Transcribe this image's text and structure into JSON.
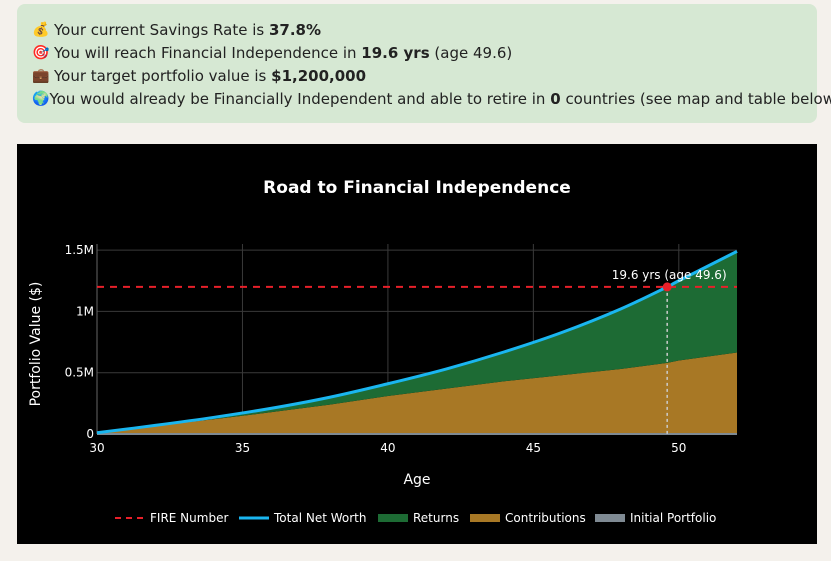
{
  "summary": {
    "savings": {
      "icon": "money-bag-icon",
      "glyph": "💰",
      "prefix": "Your current Savings Rate is ",
      "value": "37.8%"
    },
    "fi_time": {
      "icon": "target-icon",
      "glyph": "🎯",
      "prefix": "You will reach Financial Independence in ",
      "value": "19.6 yrs",
      "suffix": " (age 49.6)"
    },
    "target": {
      "icon": "briefcase-icon",
      "glyph": "💼",
      "prefix": "Your target portfolio value is ",
      "value": "$1,200,000"
    },
    "countries": {
      "icon": "globe-icon",
      "glyph": "🌍",
      "prefix": "You would already be Financially Independent and able to retire in ",
      "value": "0",
      "suffix": " countries (see map and table below)"
    }
  },
  "chart_data": {
    "type": "area",
    "title": "Road to Financial Independence",
    "xlabel": "Age",
    "ylabel": "Portfolio Value ($)",
    "xlim": [
      30,
      52
    ],
    "ylim": [
      0,
      1550000
    ],
    "xticks": [
      30,
      35,
      40,
      45,
      50
    ],
    "yticks": [
      0,
      500000,
      1000000,
      1500000
    ],
    "ytick_labels": [
      "0",
      "0.5M",
      "1M",
      "1.5M"
    ],
    "grid": true,
    "legend_position": "bottom",
    "x": [
      30,
      32,
      34,
      36,
      38,
      40,
      42,
      44,
      46,
      48,
      49.6,
      50,
      52
    ],
    "series": [
      {
        "name": "FIRE Number",
        "style": "dashed",
        "color": "#e8202a",
        "values": [
          1200000,
          1200000,
          1200000,
          1200000,
          1200000,
          1200000,
          1200000,
          1200000,
          1200000,
          1200000,
          1200000,
          1200000,
          1200000
        ]
      },
      {
        "name": "Total Net Worth",
        "style": "line",
        "color": "#1ab6f0",
        "values": [
          10000,
          70000,
          135000,
          210000,
          300000,
          410000,
          530000,
          670000,
          830000,
          1020000,
          1200000,
          1250000,
          1490000
        ]
      },
      {
        "name": "Returns",
        "style": "area",
        "color": "#1d6b34",
        "values": [
          0,
          4000,
          15000,
          32000,
          60000,
          100000,
          160000,
          240000,
          350000,
          490000,
          620000,
          650000,
          825000
        ]
      },
      {
        "name": "Contributions",
        "style": "area",
        "color": "#a87825",
        "values": [
          10000,
          66000,
          120000,
          178000,
          240000,
          310000,
          370000,
          430000,
          480000,
          530000,
          580000,
          600000,
          665000
        ]
      },
      {
        "name": "Initial Portfolio",
        "style": "area",
        "color": "#7f8a93",
        "values": [
          0,
          0,
          0,
          0,
          0,
          0,
          0,
          0,
          0,
          0,
          0,
          0,
          0
        ]
      }
    ],
    "annotation": {
      "text": "19.6 yrs (age 49.6)",
      "x": 49.6,
      "y": 1200000
    }
  }
}
